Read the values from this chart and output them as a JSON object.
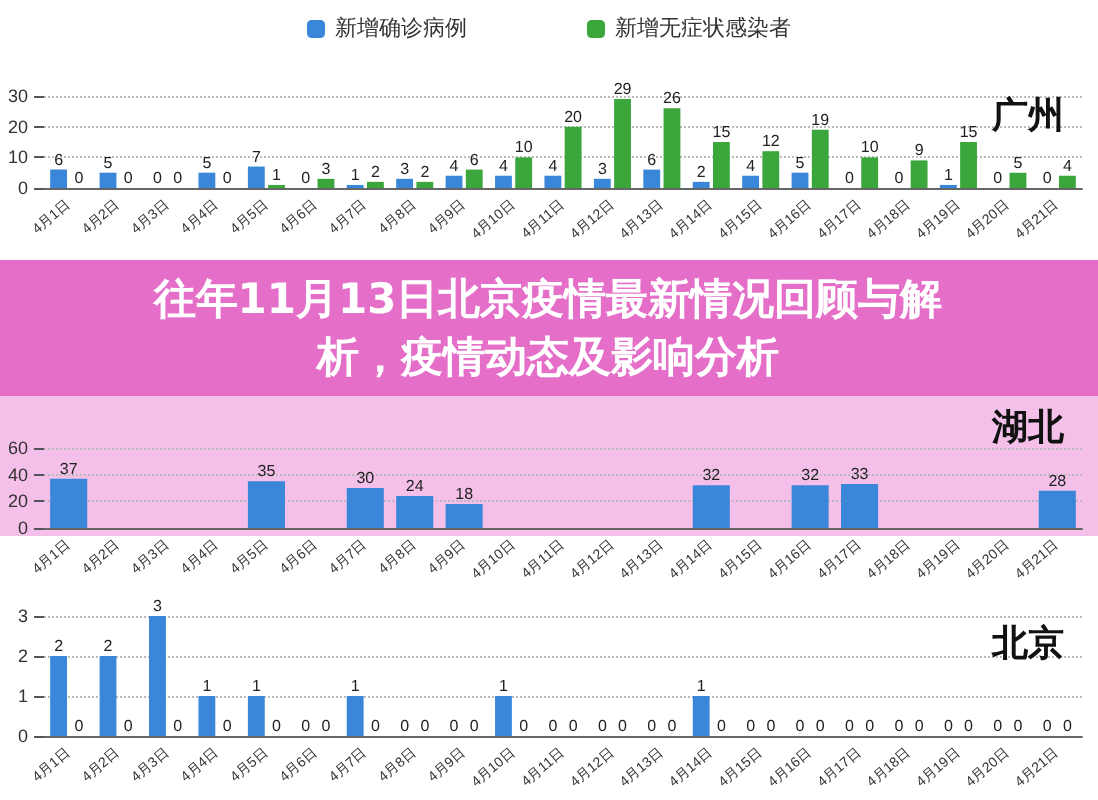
{
  "chart_data": [
    {
      "type": "bar",
      "title": "广州",
      "categories": [
        "4月1日",
        "4月2日",
        "4月3日",
        "4月4日",
        "4月5日",
        "4月6日",
        "4月7日",
        "4月8日",
        "4月9日",
        "4月10日",
        "4月11日",
        "4月12日",
        "4月13日",
        "4月14日",
        "4月15日",
        "4月16日",
        "4月17日",
        "4月18日",
        "4月19日",
        "4月20日",
        "4月21日"
      ],
      "series": [
        {
          "name": "新增确诊病例",
          "color": "#3a86d8",
          "values": [
            6,
            5,
            0,
            5,
            7,
            0,
            1,
            3,
            4,
            4,
            4,
            3,
            6,
            2,
            4,
            5,
            0,
            0,
            1,
            0,
            0
          ]
        },
        {
          "name": "新增无症状感染者",
          "color": "#3ba63b",
          "values": [
            0,
            0,
            0,
            0,
            1,
            3,
            2,
            2,
            6,
            10,
            20,
            29,
            26,
            15,
            12,
            19,
            10,
            9,
            15,
            5,
            4
          ]
        }
      ],
      "ylim": [
        0,
        30
      ],
      "yticks": [
        0,
        10,
        20,
        30
      ],
      "grid": "y",
      "legend": "top",
      "data_labels": true
    },
    {
      "type": "bar",
      "title": "湖北",
      "annotations": [
        "往年11月13日北京疫情最新情况回顾与解析，疫情动态及影响分析"
      ],
      "categories": [
        "4月1日",
        "4月2日",
        "4月3日",
        "4月4日",
        "4月5日",
        "4月6日",
        "4月7日",
        "4月8日",
        "4月9日",
        "4月10日",
        "4月11日",
        "4月12日",
        "4月13日",
        "4月14日",
        "4月15日",
        "4月16日",
        "4月17日",
        "4月18日",
        "4月19日",
        "4月20日",
        "4月21日"
      ],
      "series": [
        {
          "color": "#3a86d8",
          "values": [
            37,
            null,
            null,
            null,
            35,
            null,
            30,
            24,
            18,
            null,
            null,
            null,
            null,
            32,
            null,
            32,
            33,
            null,
            null,
            null,
            28
          ]
        }
      ],
      "ylim": [
        0,
        60
      ],
      "yticks": [
        0,
        20,
        40,
        60
      ],
      "grid": "y",
      "data_labels": true
    },
    {
      "type": "bar",
      "title": "北京",
      "categories": [
        "4月1日",
        "4月2日",
        "4月3日",
        "4月4日",
        "4月5日",
        "4月6日",
        "4月7日",
        "4月8日",
        "4月9日",
        "4月10日",
        "4月11日",
        "4月12日",
        "4月13日",
        "4月14日",
        "4月15日",
        "4月16日",
        "4月17日",
        "4月18日",
        "4月19日",
        "4月20日",
        "4月21日"
      ],
      "series": [
        {
          "color": "#3a86d8",
          "values": [
            2,
            2,
            3,
            1,
            1,
            0,
            1,
            0,
            0,
            1,
            0,
            0,
            0,
            1,
            0,
            0,
            0,
            0,
            0,
            0,
            0
          ]
        },
        {
          "color": "#3ba63b",
          "values": [
            0,
            0,
            0,
            0,
            0,
            0,
            0,
            0,
            0,
            0,
            0,
            0,
            0,
            0,
            0,
            0,
            0,
            0,
            0,
            0,
            0
          ]
        }
      ],
      "ylim": [
        0,
        3
      ],
      "yticks": [
        0,
        1,
        2,
        3
      ],
      "grid": "y",
      "data_labels": true
    }
  ]
}
